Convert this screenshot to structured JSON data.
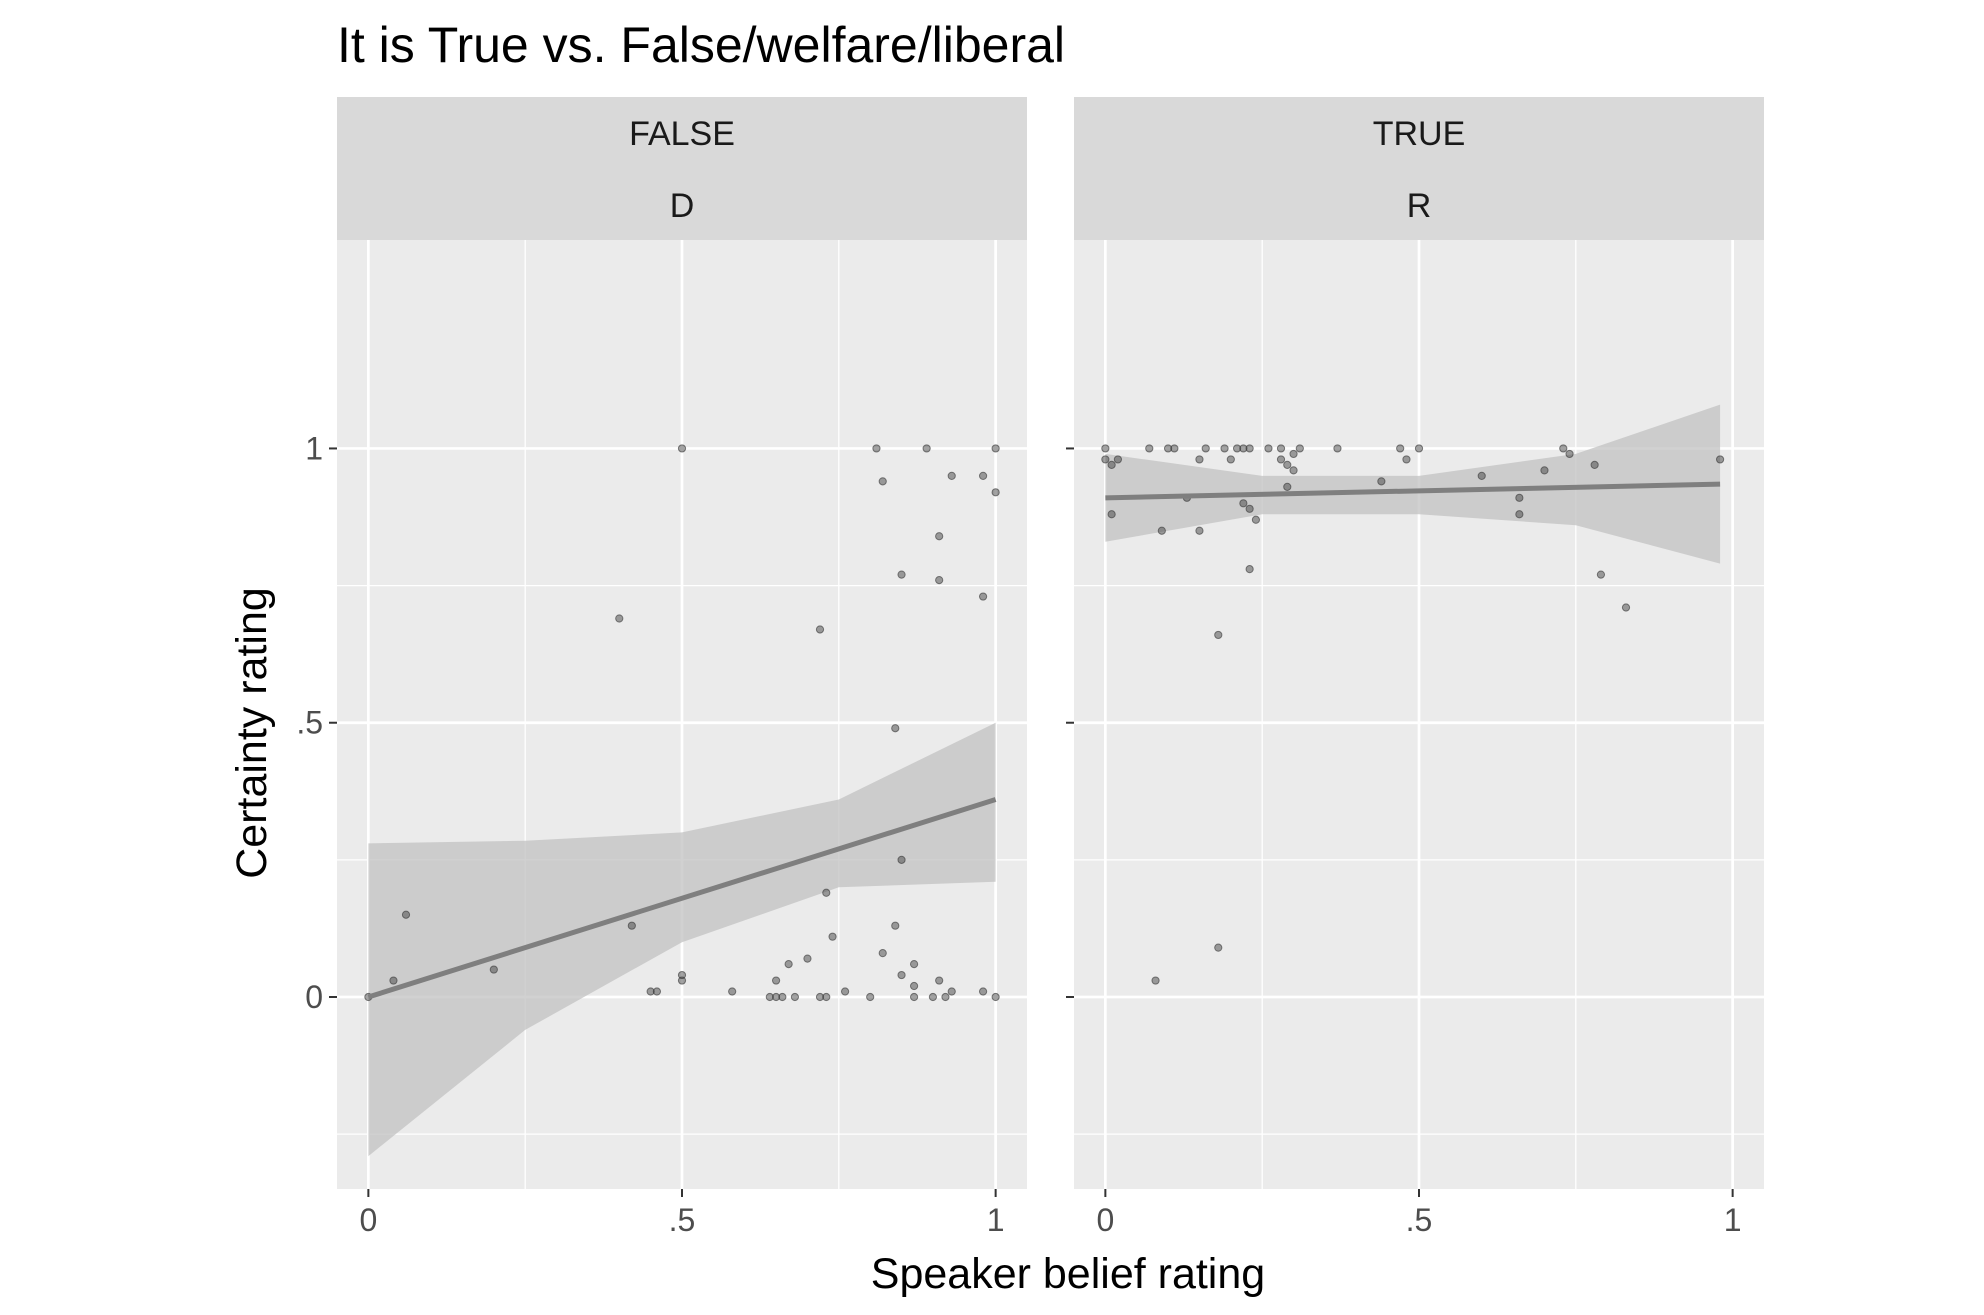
{
  "chart_data": {
    "type": "scatter",
    "title": "It is True vs. False/welfare/liberal",
    "xlabel": "Speaker belief rating",
    "ylabel": "Certainty rating",
    "xlim": [
      -0.05,
      1.05
    ],
    "ylim": [
      -0.35,
      1.38
    ],
    "x_ticks": [
      {
        "value": 0,
        "label": "0"
      },
      {
        "value": 0.5,
        "label": ".5"
      },
      {
        "value": 1,
        "label": "1"
      }
    ],
    "y_ticks": [
      {
        "value": 0,
        "label": "0"
      },
      {
        "value": 0.5,
        "label": ".5"
      },
      {
        "value": 1,
        "label": "1"
      }
    ],
    "grid": true,
    "colors": {
      "panel_bg": "#ebebeb",
      "strip_bg": "#d9d9d9",
      "grid": "#ffffff",
      "points": "#333333",
      "fit_line": "#7f7f7f",
      "ribbon": "#c2c2c2"
    },
    "panels": [
      {
        "strip": [
          "FALSE",
          "D"
        ],
        "points": [
          [
            0.0,
            0.0
          ],
          [
            0.04,
            0.03
          ],
          [
            0.06,
            0.15
          ],
          [
            0.2,
            0.05
          ],
          [
            0.4,
            0.69
          ],
          [
            0.42,
            0.13
          ],
          [
            0.45,
            0.01
          ],
          [
            0.46,
            0.01
          ],
          [
            0.5,
            0.04
          ],
          [
            0.5,
            0.03
          ],
          [
            0.5,
            1.0
          ],
          [
            0.58,
            0.01
          ],
          [
            0.64,
            0.0
          ],
          [
            0.65,
            0.03
          ],
          [
            0.65,
            0.0
          ],
          [
            0.66,
            0.0
          ],
          [
            0.67,
            0.06
          ],
          [
            0.68,
            0.0
          ],
          [
            0.7,
            0.07
          ],
          [
            0.72,
            0.0
          ],
          [
            0.73,
            0.0
          ],
          [
            0.72,
            0.67
          ],
          [
            0.73,
            0.19
          ],
          [
            0.74,
            0.11
          ],
          [
            0.76,
            0.01
          ],
          [
            0.8,
            0.0
          ],
          [
            0.81,
            1.0
          ],
          [
            0.82,
            0.08
          ],
          [
            0.82,
            0.94
          ],
          [
            0.84,
            0.49
          ],
          [
            0.84,
            0.13
          ],
          [
            0.85,
            0.25
          ],
          [
            0.85,
            0.04
          ],
          [
            0.85,
            0.77
          ],
          [
            0.87,
            0.06
          ],
          [
            0.87,
            0.02
          ],
          [
            0.87,
            0.0
          ],
          [
            0.89,
            1.0
          ],
          [
            0.9,
            0.0
          ],
          [
            0.91,
            0.84
          ],
          [
            0.91,
            0.76
          ],
          [
            0.91,
            0.03
          ],
          [
            0.92,
            0.0
          ],
          [
            0.93,
            0.01
          ],
          [
            0.93,
            0.95
          ],
          [
            0.98,
            0.73
          ],
          [
            0.98,
            0.95
          ],
          [
            0.98,
            0.01
          ],
          [
            1.0,
            1.0
          ],
          [
            1.0,
            0.92
          ],
          [
            1.0,
            0.0
          ]
        ],
        "fit": {
          "x": [
            0.0,
            1.0
          ],
          "y": [
            0.0,
            0.36
          ]
        },
        "ribbon": {
          "x": [
            0.0,
            0.25,
            0.5,
            0.75,
            1.0
          ],
          "upper": [
            0.28,
            0.285,
            0.3,
            0.36,
            0.5
          ],
          "lower": [
            -0.29,
            -0.06,
            0.1,
            0.2,
            0.21
          ]
        }
      },
      {
        "strip": [
          "TRUE",
          "R"
        ],
        "points": [
          [
            0.0,
            1.0
          ],
          [
            0.0,
            0.98
          ],
          [
            0.01,
            0.97
          ],
          [
            0.01,
            0.88
          ],
          [
            0.02,
            0.98
          ],
          [
            0.07,
            1.0
          ],
          [
            0.08,
            0.03
          ],
          [
            0.09,
            0.85
          ],
          [
            0.1,
            1.0
          ],
          [
            0.11,
            1.0
          ],
          [
            0.13,
            0.91
          ],
          [
            0.15,
            0.98
          ],
          [
            0.15,
            0.85
          ],
          [
            0.16,
            1.0
          ],
          [
            0.18,
            0.66
          ],
          [
            0.18,
            0.09
          ],
          [
            0.19,
            1.0
          ],
          [
            0.2,
            0.98
          ],
          [
            0.21,
            1.0
          ],
          [
            0.22,
            1.0
          ],
          [
            0.22,
            0.9
          ],
          [
            0.23,
            1.0
          ],
          [
            0.23,
            0.89
          ],
          [
            0.23,
            0.78
          ],
          [
            0.24,
            0.87
          ],
          [
            0.26,
            1.0
          ],
          [
            0.28,
            1.0
          ],
          [
            0.28,
            0.98
          ],
          [
            0.29,
            0.97
          ],
          [
            0.29,
            0.93
          ],
          [
            0.3,
            0.99
          ],
          [
            0.3,
            0.96
          ],
          [
            0.31,
            1.0
          ],
          [
            0.37,
            1.0
          ],
          [
            0.44,
            0.94
          ],
          [
            0.47,
            1.0
          ],
          [
            0.48,
            0.98
          ],
          [
            0.5,
            1.0
          ],
          [
            0.6,
            0.95
          ],
          [
            0.66,
            0.91
          ],
          [
            0.66,
            0.88
          ],
          [
            0.7,
            0.96
          ],
          [
            0.73,
            1.0
          ],
          [
            0.74,
            0.99
          ],
          [
            0.78,
            0.97
          ],
          [
            0.79,
            0.77
          ],
          [
            0.83,
            0.71
          ],
          [
            0.98,
            0.98
          ]
        ],
        "fit": {
          "x": [
            0.0,
            0.98
          ],
          "y": [
            0.91,
            0.935
          ]
        },
        "ribbon": {
          "x": [
            0.0,
            0.25,
            0.5,
            0.75,
            0.98
          ],
          "upper": [
            0.99,
            0.95,
            0.95,
            0.99,
            1.08
          ],
          "lower": [
            0.83,
            0.88,
            0.88,
            0.86,
            0.79
          ]
        }
      }
    ]
  }
}
